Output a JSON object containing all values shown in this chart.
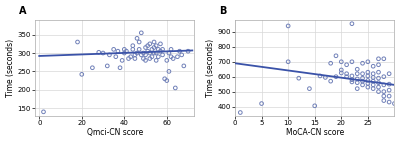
{
  "panel_A": {
    "label": "A",
    "xlabel": "Qmci-CN score",
    "ylabel": "Time (seconds)",
    "xlim": [
      -2,
      73
    ],
    "ylim": [
      130,
      390
    ],
    "xticks": [
      0,
      20,
      40,
      60
    ],
    "yticks": [
      150,
      200,
      250,
      300,
      350
    ],
    "trend_x": [
      0,
      72
    ],
    "trend_y": [
      292,
      307
    ],
    "scatter_x": [
      2,
      18,
      20,
      25,
      28,
      30,
      32,
      33,
      35,
      36,
      37,
      38,
      39,
      40,
      40,
      41,
      42,
      43,
      44,
      44,
      45,
      45,
      46,
      46,
      47,
      47,
      48,
      48,
      49,
      49,
      50,
      50,
      50,
      51,
      51,
      52,
      52,
      52,
      53,
      53,
      54,
      54,
      54,
      55,
      55,
      55,
      56,
      56,
      57,
      57,
      58,
      58,
      59,
      60,
      60,
      61,
      61,
      62,
      62,
      63,
      64,
      65,
      66,
      67,
      68,
      70
    ],
    "scatter_y": [
      140,
      330,
      242,
      260,
      302,
      300,
      265,
      295,
      310,
      290,
      305,
      260,
      280,
      300,
      310,
      305,
      285,
      290,
      310,
      320,
      285,
      295,
      340,
      300,
      310,
      330,
      355,
      295,
      285,
      300,
      280,
      295,
      315,
      305,
      320,
      285,
      300,
      325,
      290,
      310,
      300,
      315,
      330,
      280,
      300,
      320,
      290,
      310,
      305,
      325,
      295,
      310,
      230,
      225,
      280,
      250,
      300,
      290,
      310,
      285,
      205,
      290,
      305,
      295,
      265,
      305
    ]
  },
  "panel_B": {
    "label": "B",
    "xlabel": "MoCA-CN score",
    "ylabel": "Time (seconds)",
    "xlim": [
      0,
      30
    ],
    "ylim": [
      340,
      980
    ],
    "xticks": [
      0,
      5,
      10,
      15,
      20,
      25
    ],
    "yticks": [
      400,
      500,
      600,
      700,
      800,
      900
    ],
    "trend_x": [
      0,
      30
    ],
    "trend_y": [
      690,
      545
    ],
    "scatter_x": [
      1,
      10,
      10,
      12,
      14,
      15,
      16,
      17,
      18,
      18,
      19,
      19,
      20,
      20,
      20,
      21,
      21,
      21,
      22,
      22,
      22,
      22,
      23,
      23,
      23,
      23,
      23,
      24,
      24,
      24,
      24,
      24,
      25,
      25,
      25,
      25,
      25,
      25,
      26,
      26,
      26,
      26,
      26,
      26,
      27,
      27,
      27,
      27,
      27,
      27,
      28,
      28,
      28,
      28,
      28,
      29,
      29,
      29,
      29,
      29,
      30,
      5,
      22,
      27,
      28
    ],
    "scatter_y": [
      360,
      940,
      700,
      590,
      520,
      405,
      605,
      595,
      570,
      690,
      600,
      740,
      625,
      645,
      700,
      600,
      620,
      680,
      565,
      580,
      605,
      700,
      520,
      560,
      585,
      620,
      650,
      545,
      570,
      590,
      620,
      690,
      530,
      555,
      575,
      605,
      630,
      700,
      520,
      545,
      570,
      595,
      620,
      670,
      500,
      530,
      560,
      590,
      630,
      680,
      440,
      470,
      500,
      545,
      600,
      430,
      470,
      510,
      550,
      620,
      420,
      420,
      955,
      720,
      720
    ]
  },
  "dot_facecolor": "none",
  "dot_edgecolor": "#7080b8",
  "dot_size": 7,
  "dot_linewidth": 0.7,
  "line_color": "#3a52a8",
  "line_width": 1.3,
  "bg_color": "#ffffff",
  "fig_bg_color": "#ffffff",
  "grid_color": "#d8d8d8",
  "tick_fontsize": 5,
  "label_fontsize": 5.5,
  "panel_label_fontsize": 7
}
